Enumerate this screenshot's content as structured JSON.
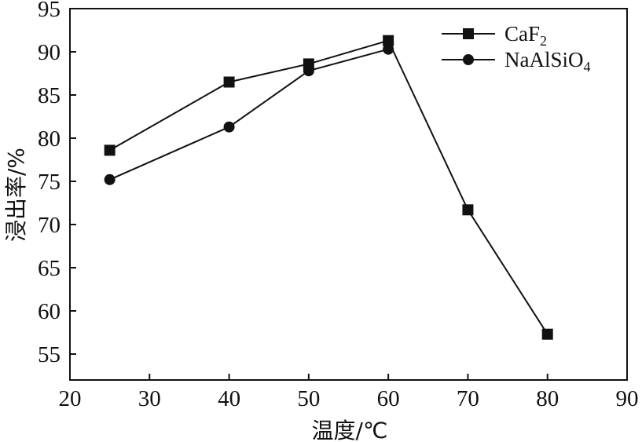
{
  "chart_data": {
    "type": "line",
    "xlabel": "温度/℃",
    "ylabel": "浸出率/%",
    "xlim": [
      20,
      90
    ],
    "ylim": [
      52,
      95
    ],
    "x_ticks": [
      20,
      30,
      40,
      50,
      60,
      70,
      80,
      90
    ],
    "y_ticks": [
      55,
      60,
      65,
      70,
      75,
      80,
      85,
      90,
      95
    ],
    "grid": false,
    "legend_position": "top-right",
    "series": [
      {
        "name": "CaF2",
        "name_base": "CaF",
        "name_sub": "2",
        "marker": "square",
        "color": "#111111",
        "x": [
          25,
          40,
          50,
          60,
          70,
          80
        ],
        "y": [
          78.6,
          86.5,
          88.6,
          91.3,
          71.7,
          57.3
        ]
      },
      {
        "name": "NaAlSiO4",
        "name_base": "NaAlSiO",
        "name_sub": "4",
        "marker": "circle",
        "color": "#111111",
        "x": [
          25,
          40,
          50,
          60
        ],
        "y": [
          75.2,
          81.3,
          87.8,
          90.3
        ]
      }
    ]
  }
}
